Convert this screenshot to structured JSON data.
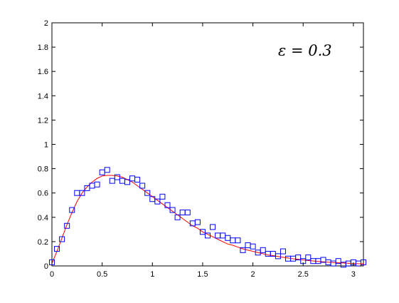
{
  "chart_data": {
    "type": "scatter",
    "title": "",
    "xlabel": "",
    "ylabel": "",
    "xlim": [
      0,
      3.1
    ],
    "ylim": [
      0,
      2
    ],
    "x_ticks": [
      "0",
      "0.5",
      "1",
      "1.5",
      "2",
      "2.5",
      "3"
    ],
    "y_ticks": [
      "0",
      "0.2",
      "0.4",
      "0.6",
      "0.8",
      "1",
      "1.2",
      "1.4",
      "1.6",
      "1.8",
      "2"
    ],
    "grid": false,
    "annotation": "ε = 0.3",
    "series": [
      {
        "type": "scatter",
        "marker": "square",
        "color": "#0000ff",
        "points": [
          [
            0.0,
            0.03
          ],
          [
            0.05,
            0.14
          ],
          [
            0.1,
            0.22
          ],
          [
            0.15,
            0.33
          ],
          [
            0.2,
            0.46
          ],
          [
            0.25,
            0.6
          ],
          [
            0.3,
            0.6
          ],
          [
            0.35,
            0.64
          ],
          [
            0.4,
            0.66
          ],
          [
            0.45,
            0.67
          ],
          [
            0.5,
            0.77
          ],
          [
            0.55,
            0.79
          ],
          [
            0.6,
            0.7
          ],
          [
            0.65,
            0.73
          ],
          [
            0.7,
            0.7
          ],
          [
            0.75,
            0.69
          ],
          [
            0.8,
            0.72
          ],
          [
            0.85,
            0.71
          ],
          [
            0.9,
            0.66
          ],
          [
            0.95,
            0.6
          ],
          [
            1.0,
            0.55
          ],
          [
            1.05,
            0.53
          ],
          [
            1.1,
            0.57
          ],
          [
            1.15,
            0.5
          ],
          [
            1.2,
            0.46
          ],
          [
            1.25,
            0.4
          ],
          [
            1.3,
            0.44
          ],
          [
            1.35,
            0.44
          ],
          [
            1.4,
            0.35
          ],
          [
            1.45,
            0.36
          ],
          [
            1.5,
            0.28
          ],
          [
            1.55,
            0.25
          ],
          [
            1.6,
            0.32
          ],
          [
            1.65,
            0.25
          ],
          [
            1.7,
            0.25
          ],
          [
            1.75,
            0.23
          ],
          [
            1.8,
            0.21
          ],
          [
            1.85,
            0.21
          ],
          [
            1.9,
            0.13
          ],
          [
            1.95,
            0.17
          ],
          [
            2.0,
            0.16
          ],
          [
            2.05,
            0.11
          ],
          [
            2.1,
            0.13
          ],
          [
            2.15,
            0.1
          ],
          [
            2.2,
            0.1
          ],
          [
            2.25,
            0.08
          ],
          [
            2.3,
            0.12
          ],
          [
            2.35,
            0.06
          ],
          [
            2.4,
            0.06
          ],
          [
            2.45,
            0.07
          ],
          [
            2.5,
            0.04
          ],
          [
            2.55,
            0.07
          ],
          [
            2.6,
            0.04
          ],
          [
            2.65,
            0.04
          ],
          [
            2.7,
            0.05
          ],
          [
            2.75,
            0.03
          ],
          [
            2.8,
            0.02
          ],
          [
            2.85,
            0.04
          ],
          [
            2.9,
            0.01
          ],
          [
            2.95,
            0.02
          ],
          [
            3.0,
            0.03
          ],
          [
            3.05,
            0.02
          ],
          [
            3.1,
            0.03
          ]
        ]
      },
      {
        "type": "line",
        "color": "#ff0000",
        "points": [
          [
            0.0,
            0.02
          ],
          [
            0.05,
            0.12
          ],
          [
            0.1,
            0.23
          ],
          [
            0.15,
            0.34
          ],
          [
            0.2,
            0.44
          ],
          [
            0.25,
            0.53
          ],
          [
            0.3,
            0.6
          ],
          [
            0.35,
            0.65
          ],
          [
            0.4,
            0.69
          ],
          [
            0.45,
            0.72
          ],
          [
            0.5,
            0.74
          ],
          [
            0.55,
            0.745
          ],
          [
            0.6,
            0.745
          ],
          [
            0.65,
            0.74
          ],
          [
            0.7,
            0.73
          ],
          [
            0.75,
            0.71
          ],
          [
            0.8,
            0.69
          ],
          [
            0.85,
            0.66
          ],
          [
            0.9,
            0.63
          ],
          [
            0.95,
            0.6
          ],
          [
            1.0,
            0.57
          ],
          [
            1.05,
            0.54
          ],
          [
            1.1,
            0.51
          ],
          [
            1.15,
            0.48
          ],
          [
            1.2,
            0.45
          ],
          [
            1.25,
            0.42
          ],
          [
            1.3,
            0.39
          ],
          [
            1.35,
            0.36
          ],
          [
            1.4,
            0.33
          ],
          [
            1.45,
            0.31
          ],
          [
            1.5,
            0.28
          ],
          [
            1.55,
            0.26
          ],
          [
            1.6,
            0.24
          ],
          [
            1.65,
            0.22
          ],
          [
            1.7,
            0.2
          ],
          [
            1.75,
            0.18
          ],
          [
            1.8,
            0.17
          ],
          [
            1.85,
            0.155
          ],
          [
            1.9,
            0.14
          ],
          [
            1.95,
            0.13
          ],
          [
            2.0,
            0.12
          ],
          [
            2.05,
            0.11
          ],
          [
            2.1,
            0.1
          ],
          [
            2.15,
            0.09
          ],
          [
            2.2,
            0.085
          ],
          [
            2.25,
            0.078
          ],
          [
            2.3,
            0.071
          ],
          [
            2.35,
            0.065
          ],
          [
            2.4,
            0.059
          ],
          [
            2.45,
            0.054
          ],
          [
            2.5,
            0.049
          ],
          [
            2.55,
            0.045
          ],
          [
            2.6,
            0.041
          ],
          [
            2.65,
            0.037
          ],
          [
            2.7,
            0.034
          ],
          [
            2.75,
            0.031
          ],
          [
            2.8,
            0.028
          ],
          [
            2.85,
            0.026
          ],
          [
            2.9,
            0.024
          ],
          [
            2.95,
            0.022
          ],
          [
            3.0,
            0.02
          ],
          [
            3.05,
            0.018
          ],
          [
            3.1,
            0.017
          ]
        ]
      }
    ]
  }
}
